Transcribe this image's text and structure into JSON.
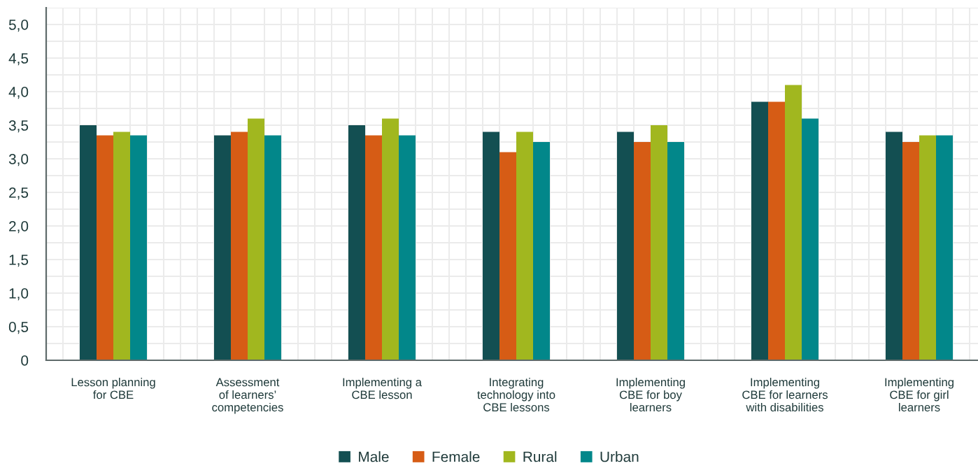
{
  "chart_data": {
    "type": "bar",
    "categories": [
      "Lesson planning\nfor CBE",
      "Assessment\nof learners’\ncompetencies",
      "Implementing a\nCBE lesson",
      "Integrating\ntechnology into\nCBE lessons",
      "Implementing\nCBE for boy\nlearners",
      "Implementing\nCBE for learners\nwith disabilities",
      "Implementing\nCBE for girl\nlearners"
    ],
    "series": [
      {
        "name": "Male",
        "color": "#134f52",
        "values": [
          3.5,
          3.35,
          3.5,
          3.4,
          3.4,
          3.85,
          3.4
        ]
      },
      {
        "name": "Female",
        "color": "#d65c15",
        "values": [
          3.35,
          3.4,
          3.35,
          3.1,
          3.25,
          3.85,
          3.25
        ]
      },
      {
        "name": "Rural",
        "color": "#a1b71f",
        "values": [
          3.4,
          3.6,
          3.6,
          3.4,
          3.5,
          4.1,
          3.35
        ]
      },
      {
        "name": "Urban",
        "color": "#02878a",
        "values": [
          3.35,
          3.35,
          3.35,
          3.25,
          3.25,
          3.6,
          3.35
        ]
      }
    ],
    "ylim": [
      0,
      5.25
    ],
    "yticks": [
      0,
      {
        "value": 0.5,
        "label": "0,5"
      },
      {
        "value": 1.0,
        "label": "1,0"
      },
      {
        "value": 1.5,
        "label": "1,5"
      },
      {
        "value": 2.0,
        "label": "2,0"
      },
      {
        "value": 2.5,
        "label": "2,5"
      },
      {
        "value": 3.0,
        "label": "3,0"
      },
      {
        "value": 3.5,
        "label": "3,5"
      },
      {
        "value": 4.0,
        "label": "4,0"
      },
      {
        "value": 4.5,
        "label": "4,5"
      },
      {
        "value": 5.0,
        "label": "5,0"
      }
    ],
    "grid": true,
    "legend": "bottom"
  }
}
